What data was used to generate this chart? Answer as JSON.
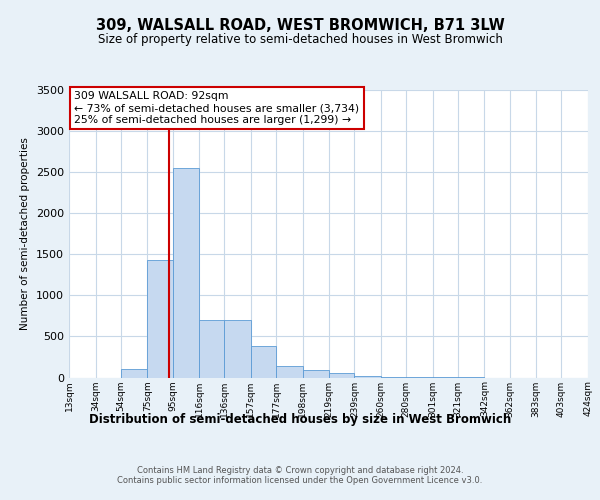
{
  "title": "309, WALSALL ROAD, WEST BROMWICH, B71 3LW",
  "subtitle": "Size of property relative to semi-detached houses in West Bromwich",
  "xlabel": "Distribution of semi-detached houses by size in West Bromwich",
  "ylabel": "Number of semi-detached properties",
  "bin_labels": [
    "13sqm",
    "34sqm",
    "54sqm",
    "75sqm",
    "95sqm",
    "116sqm",
    "136sqm",
    "157sqm",
    "177sqm",
    "198sqm",
    "219sqm",
    "239sqm",
    "260sqm",
    "280sqm",
    "301sqm",
    "321sqm",
    "342sqm",
    "362sqm",
    "383sqm",
    "403sqm",
    "424sqm"
  ],
  "bin_edges": [
    13,
    34,
    54,
    75,
    95,
    116,
    136,
    157,
    177,
    198,
    219,
    239,
    260,
    280,
    301,
    321,
    342,
    362,
    383,
    403,
    424
  ],
  "bar_heights": [
    0,
    0,
    100,
    1430,
    2550,
    700,
    700,
    380,
    145,
    95,
    50,
    20,
    5,
    3,
    2,
    1,
    0,
    0,
    0,
    0,
    0
  ],
  "bar_color": "#c6d9f0",
  "bar_edge_color": "#5b9bd5",
  "property_size": 92,
  "red_line_color": "#cc0000",
  "annotation_text": "309 WALSALL ROAD: 92sqm\n← 73% of semi-detached houses are smaller (3,734)\n25% of semi-detached houses are larger (1,299) →",
  "annotation_box_color": "#ffffff",
  "annotation_box_edge": "#cc0000",
  "ylim": [
    0,
    3500
  ],
  "yticks": [
    0,
    500,
    1000,
    1500,
    2000,
    2500,
    3000,
    3500
  ],
  "footer_line1": "Contains HM Land Registry data © Crown copyright and database right 2024.",
  "footer_line2": "Contains public sector information licensed under the Open Government Licence v3.0.",
  "bg_color": "#e8f1f8",
  "plot_bg_color": "#ffffff",
  "grid_color": "#c8d8e8"
}
